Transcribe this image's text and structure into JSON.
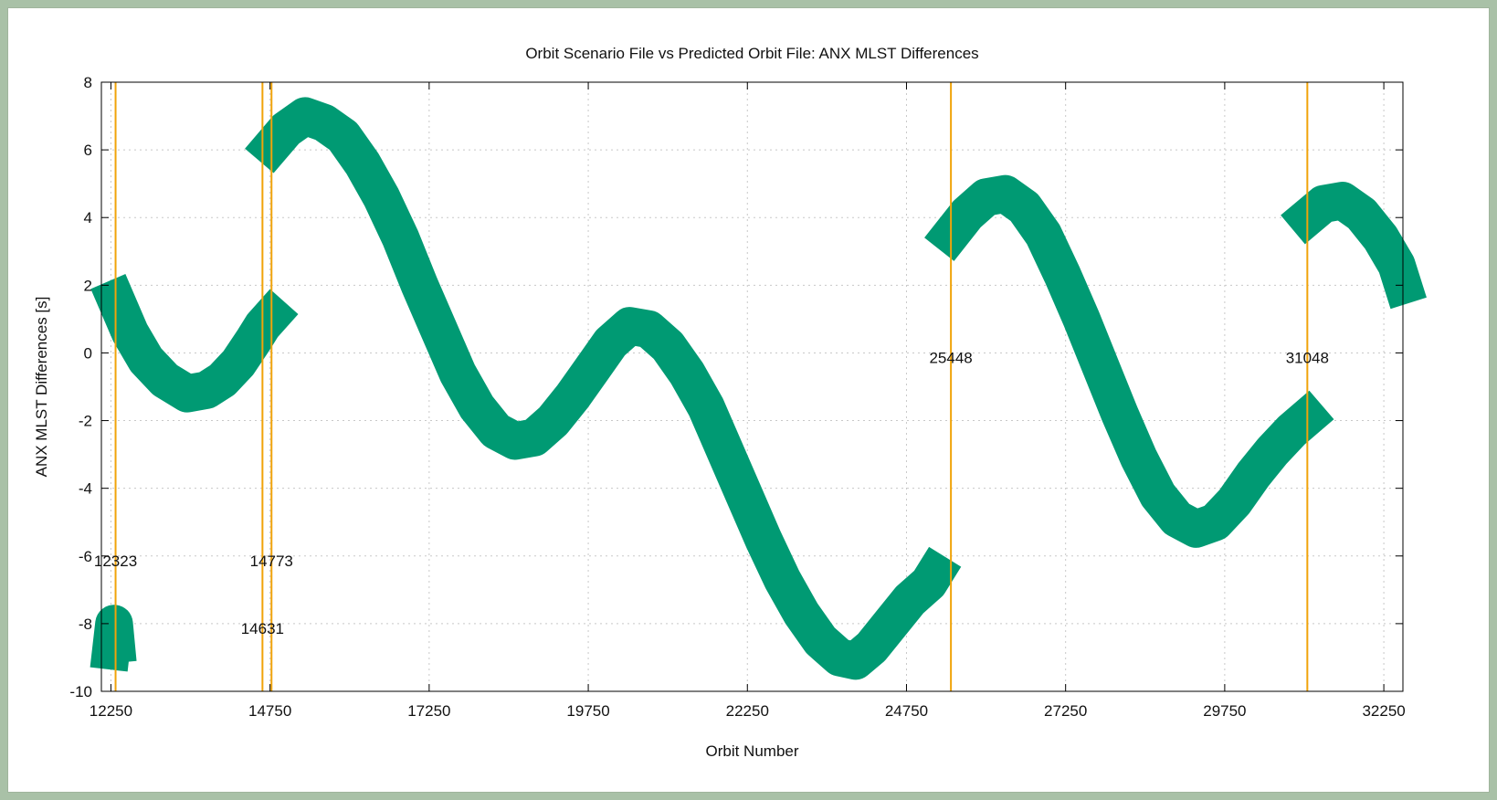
{
  "chart_data": {
    "type": "line",
    "title": "Orbit Scenario File vs Predicted Orbit File: ANX MLST Differences",
    "xlabel": "Orbit Number",
    "ylabel": "ANX MLST Differences [s]",
    "xlim": [
      12100,
      32550
    ],
    "ylim": [
      -10,
      8
    ],
    "grid": true,
    "xticks": [
      12250,
      14750,
      17250,
      19750,
      22250,
      24750,
      27250,
      29750,
      32250
    ],
    "yticks": [
      -10,
      -8,
      -6,
      -4,
      -2,
      0,
      2,
      4,
      6,
      8
    ],
    "colors": {
      "series": "#009a73",
      "markers": "#f0a30a"
    },
    "series_band_width_seconds": 0.9,
    "series": [
      {
        "segment": 1,
        "points": [
          [
            12250,
            -8.8
          ],
          [
            12300,
            -8.0
          ],
          [
            12330,
            -8.6
          ]
        ]
      },
      {
        "segment": 2,
        "points": [
          [
            12323,
            1.6
          ],
          [
            12550,
            0.6
          ],
          [
            12800,
            -0.2
          ],
          [
            13100,
            -0.8
          ],
          [
            13450,
            -1.2
          ],
          [
            13750,
            -1.1
          ],
          [
            14000,
            -0.8
          ],
          [
            14250,
            -0.3
          ],
          [
            14500,
            0.4
          ],
          [
            14631,
            0.8
          ],
          [
            14773,
            1.1
          ]
        ]
      },
      {
        "segment": 3,
        "points": [
          [
            14773,
            6.1
          ],
          [
            15000,
            6.6
          ],
          [
            15300,
            7.0
          ],
          [
            15600,
            6.8
          ],
          [
            15900,
            6.4
          ],
          [
            16200,
            5.6
          ],
          [
            16500,
            4.6
          ],
          [
            16800,
            3.4
          ],
          [
            17100,
            2.0
          ],
          [
            17400,
            0.7
          ],
          [
            17700,
            -0.6
          ],
          [
            18000,
            -1.6
          ],
          [
            18300,
            -2.3
          ],
          [
            18600,
            -2.6
          ],
          [
            18900,
            -2.5
          ],
          [
            19200,
            -2.0
          ],
          [
            19500,
            -1.3
          ],
          [
            19800,
            -0.5
          ],
          [
            20100,
            0.3
          ],
          [
            20400,
            0.8
          ],
          [
            20700,
            0.7
          ],
          [
            21000,
            0.2
          ],
          [
            21300,
            -0.6
          ],
          [
            21600,
            -1.6
          ],
          [
            21900,
            -2.9
          ],
          [
            22200,
            -4.2
          ],
          [
            22500,
            -5.5
          ],
          [
            22800,
            -6.7
          ],
          [
            23100,
            -7.7
          ],
          [
            23400,
            -8.5
          ],
          [
            23700,
            -9.0
          ],
          [
            23950,
            -9.1
          ],
          [
            24200,
            -8.7
          ],
          [
            24500,
            -8.0
          ],
          [
            24800,
            -7.3
          ],
          [
            25100,
            -6.8
          ],
          [
            25200,
            -6.5
          ]
        ]
      },
      {
        "segment": 4,
        "points": [
          [
            25448,
            3.5
          ],
          [
            25700,
            4.1
          ],
          [
            26000,
            4.6
          ],
          [
            26300,
            4.7
          ],
          [
            26600,
            4.3
          ],
          [
            26900,
            3.5
          ],
          [
            27200,
            2.3
          ],
          [
            27500,
            1.0
          ],
          [
            27800,
            -0.4
          ],
          [
            28100,
            -1.8
          ],
          [
            28400,
            -3.1
          ],
          [
            28700,
            -4.2
          ],
          [
            29000,
            -4.9
          ],
          [
            29300,
            -5.2
          ],
          [
            29600,
            -5.0
          ],
          [
            29900,
            -4.4
          ],
          [
            30200,
            -3.6
          ],
          [
            30500,
            -2.9
          ],
          [
            30800,
            -2.3
          ],
          [
            31048,
            -1.9
          ]
        ]
      },
      {
        "segment": 5,
        "points": [
          [
            31048,
            4.0
          ],
          [
            31300,
            4.4
          ],
          [
            31600,
            4.5
          ],
          [
            31900,
            4.1
          ],
          [
            32200,
            3.4
          ],
          [
            32450,
            2.6
          ],
          [
            32550,
            2.0
          ]
        ]
      }
    ],
    "marker_lines": [
      12323,
      14631,
      14773,
      25448,
      31048
    ],
    "marker_labels": [
      {
        "text": "12323",
        "x": 12323,
        "y": -6.3
      },
      {
        "text": "14773",
        "x": 14773,
        "y": -6.3
      },
      {
        "text": "14631",
        "x": 14631,
        "y": -8.3
      },
      {
        "text": "25448",
        "x": 25448,
        "y": -0.3
      },
      {
        "text": "31048",
        "x": 31048,
        "y": -0.3
      }
    ]
  }
}
